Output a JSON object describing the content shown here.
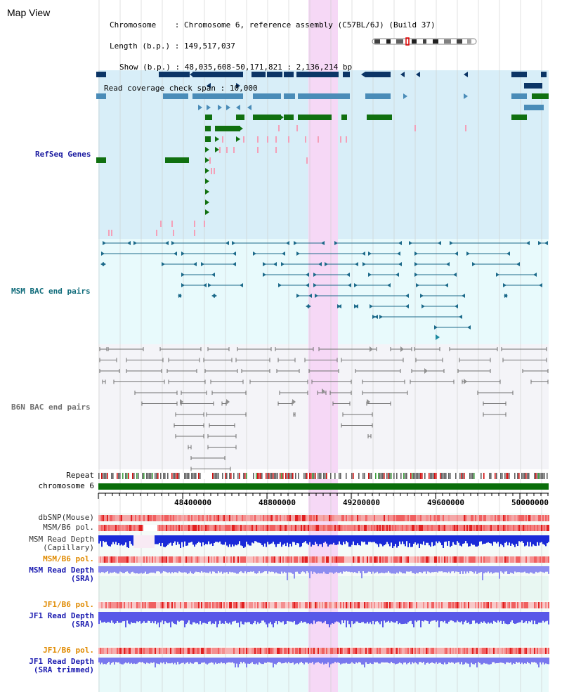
{
  "title": "Map View",
  "info": {
    "chromosome_label": "Chromosome",
    "chromosome_value": "Chromosome 6, reference assembly (C57BL/6J) (Build 37)",
    "length_label": "Length (b.p.)",
    "length_value": "149,517,037",
    "show_label": "Show (b.p.)",
    "show_value": "48,035,608-50,171,821 : 2,136,214 bp",
    "span_label": "Read coverage check span",
    "span_value": "10,000"
  },
  "colors": {
    "refseq_bg": "#d8eef8",
    "msm_bg": "#e8fafc",
    "b6n_bg": "#f4f4f8",
    "coverage_bg": "#e8f7f2",
    "highlight": "#f6d8f6",
    "gene_dark": "#0c3566",
    "gene_mid": "#4a8cb8",
    "gene_green": "#107010",
    "pink": "#f4a0b8",
    "teal_line": "#1c6a8a",
    "chrom_green": "#0a6e0a"
  },
  "tracks": {
    "refseq": "RefSeq Genes",
    "msm_bac": "MSM BAC end pairs",
    "b6n_bac": "B6N BAC end pairs",
    "repeat": "Repeat",
    "chromosome": "chromosome 6",
    "dbsnp": "dbSNP(Mouse)",
    "msm_b6_pol": "MSM/B6 pol.",
    "msm_depth_cap_1": "MSM Read Depth",
    "msm_depth_cap_2": "(Capillary)",
    "msm_b6_pol2": "MSM/B6 pol.",
    "msm_depth_sra_1": "MSM Read Depth",
    "msm_depth_sra_2": "(SRA)",
    "jf1_b6_pol": "JF1/B6 pol.",
    "jf1_depth_sra_1": "JF1 Read Depth",
    "jf1_depth_sra_2": "(SRA)",
    "jf1_b6_pol2": "JF1/B6 pol.",
    "jf1_depth_trim_1": "JF1 Read Depth",
    "jf1_depth_trim_2": "(SRA trimmed)"
  },
  "axis": {
    "ticks": [
      "48400000",
      "48800000",
      "49200000",
      "49600000",
      "50000000"
    ]
  }
}
